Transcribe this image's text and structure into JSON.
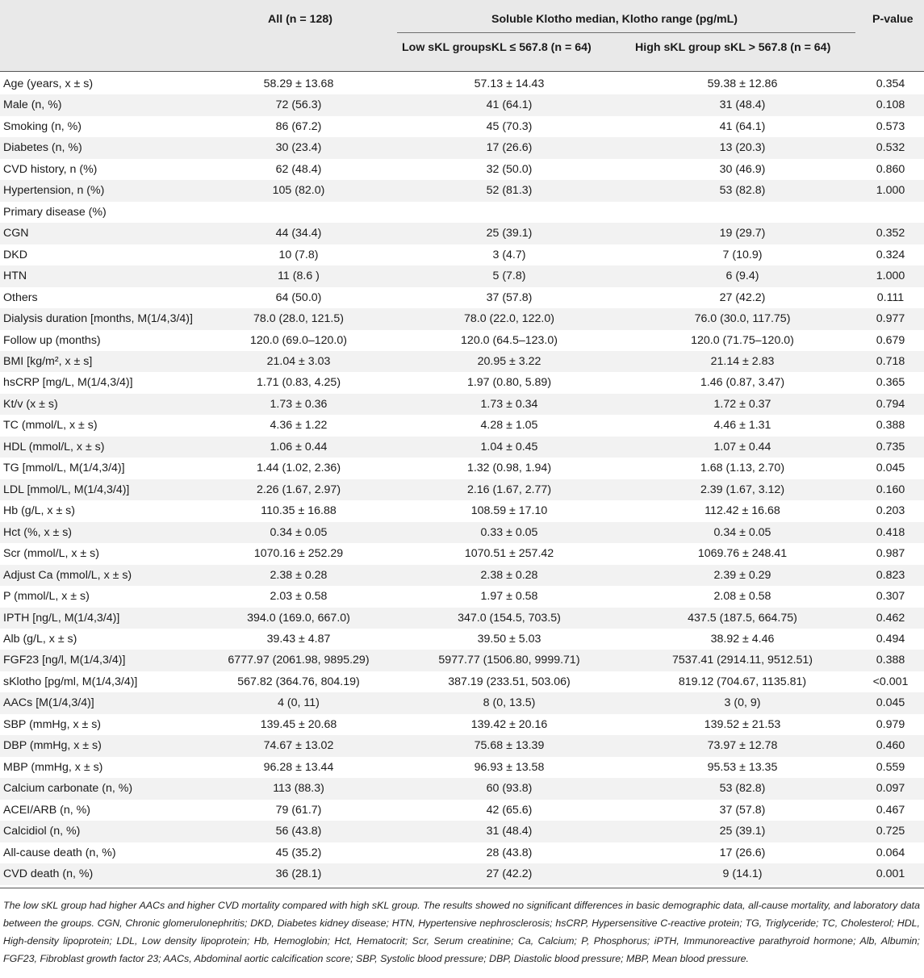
{
  "header": {
    "col_all": "All (n = 128)",
    "col_group": "Soluble Klotho median, Klotho range (pg/mL)",
    "col_p": "P-value",
    "col_low": "Low sKL groupsKL ≤ 567.8 (n = 64)",
    "col_high": "High sKL group sKL > 567.8 (n = 64)"
  },
  "rows": [
    {
      "label": "Age (years, x ± s)",
      "all": "58.29 ± 13.68",
      "low": "57.13 ± 14.43",
      "high": "59.38 ± 12.86",
      "p": "0.354"
    },
    {
      "label": "Male (n, %)",
      "all": "72 (56.3)",
      "low": "41 (64.1)",
      "high": "31 (48.4)",
      "p": "0.108"
    },
    {
      "label": "Smoking (n, %)",
      "all": "86 (67.2)",
      "low": "45 (70.3)",
      "high": "41 (64.1)",
      "p": "0.573"
    },
    {
      "label": "Diabetes (n, %)",
      "all": "30 (23.4)",
      "low": "17 (26.6)",
      "high": "13 (20.3)",
      "p": "0.532"
    },
    {
      "label": "CVD history, n (%)",
      "all": "62 (48.4)",
      "low": "32 (50.0)",
      "high": "30 (46.9)",
      "p": "0.860"
    },
    {
      "label": "Hypertension, n (%)",
      "all": "105 (82.0)",
      "low": "52 (81.3)",
      "high": "53 (82.8)",
      "p": "1.000"
    },
    {
      "label": "Primary disease (%)",
      "all": "",
      "low": "",
      "high": "",
      "p": ""
    },
    {
      "label": "CGN",
      "all": "44 (34.4)",
      "low": "25 (39.1)",
      "high": "19 (29.7)",
      "p": "0.352"
    },
    {
      "label": "DKD",
      "all": "10 (7.8)",
      "low": "3 (4.7)",
      "high": "7 (10.9)",
      "p": "0.324"
    },
    {
      "label": "HTN",
      "all": "11 (8.6 )",
      "low": "5 (7.8)",
      "high": "6 (9.4)",
      "p": "1.000"
    },
    {
      "label": "Others",
      "all": "64 (50.0)",
      "low": "37 (57.8)",
      "high": "27 (42.2)",
      "p": "0.111"
    },
    {
      "label": "Dialysis duration [months, M(1/4,3/4)]",
      "all": "78.0 (28.0, 121.5)",
      "low": "78.0 (22.0, 122.0)",
      "high": "76.0 (30.0, 117.75)",
      "p": "0.977"
    },
    {
      "label": "Follow up (months)",
      "all": "120.0 (69.0–120.0)",
      "low": "120.0 (64.5–123.0)",
      "high": "120.0 (71.75–120.0)",
      "p": "0.679"
    },
    {
      "label": "BMI [kg/m², x ± s]",
      "all": "21.04 ± 3.03",
      "low": "20.95 ± 3.22",
      "high": "21.14 ± 2.83",
      "p": "0.718"
    },
    {
      "label": "hsCRP [mg/L, M(1/4,3/4)]",
      "all": "1.71 (0.83, 4.25)",
      "low": "1.97 (0.80, 5.89)",
      "high": "1.46 (0.87, 3.47)",
      "p": "0.365"
    },
    {
      "label": "Kt/v (x ± s)",
      "all": "1.73 ± 0.36",
      "low": "1.73 ± 0.34",
      "high": "1.72 ± 0.37",
      "p": "0.794"
    },
    {
      "label": "TC (mmol/L, x ± s)",
      "all": "4.36 ± 1.22",
      "low": "4.28 ± 1.05",
      "high": "4.46 ± 1.31",
      "p": "0.388"
    },
    {
      "label": "HDL (mmol/L, x ± s)",
      "all": "1.06 ± 0.44",
      "low": "1.04 ± 0.45",
      "high": "1.07 ± 0.44",
      "p": "0.735"
    },
    {
      "label": "TG [mmol/L, M(1/4,3/4)]",
      "all": "1.44 (1.02, 2.36)",
      "low": "1.32 (0.98, 1.94)",
      "high": "1.68 (1.13, 2.70)",
      "p": "0.045"
    },
    {
      "label": "LDL [mmol/L, M(1/4,3/4)]",
      "all": "2.26 (1.67, 2.97)",
      "low": "2.16 (1.67, 2.77)",
      "high": "2.39 (1.67, 3.12)",
      "p": "0.160"
    },
    {
      "label": "Hb (g/L, x ± s)",
      "all": "110.35 ± 16.88",
      "low": "108.59 ± 17.10",
      "high": "112.42 ± 16.68",
      "p": "0.203"
    },
    {
      "label": "Hct (%, x ± s)",
      "all": "0.34 ± 0.05",
      "low": "0.33 ± 0.05",
      "high": "0.34 ± 0.05",
      "p": "0.418"
    },
    {
      "label": "Scr (mmol/L, x ± s)",
      "all": "1070.16 ± 252.29",
      "low": "1070.51 ± 257.42",
      "high": "1069.76 ± 248.41",
      "p": "0.987"
    },
    {
      "label": "Adjust Ca (mmol/L, x ± s)",
      "all": "2.38 ± 0.28",
      "low": "2.38 ± 0.28",
      "high": "2.39 ± 0.29",
      "p": "0.823"
    },
    {
      "label": "P (mmol/L, x ± s)",
      "all": "2.03 ± 0.58",
      "low": "1.97 ± 0.58",
      "high": "2.08 ± 0.58",
      "p": "0.307"
    },
    {
      "label": "IPTH [ng/L, M(1/4,3/4)]",
      "all": "394.0 (169.0, 667.0)",
      "low": "347.0 (154.5, 703.5)",
      "high": "437.5 (187.5, 664.75)",
      "p": "0.462"
    },
    {
      "label": "Alb (g/L, x ± s)",
      "all": "39.43 ± 4.87",
      "low": "39.50 ± 5.03",
      "high": "38.92 ± 4.46",
      "p": "0.494"
    },
    {
      "label": "FGF23 [ng/l, M(1/4,3/4)]",
      "all": "6777.97 (2061.98, 9895.29)",
      "low": "5977.77 (1506.80, 9999.71)",
      "high": "7537.41 (2914.11, 9512.51)",
      "p": "0.388"
    },
    {
      "label": "sKlotho [pg/ml, M(1/4,3/4)]",
      "all": "567.82 (364.76, 804.19)",
      "low": "387.19 (233.51, 503.06)",
      "high": "819.12 (704.67, 1135.81)",
      "p": "<0.001"
    },
    {
      "label": "AACs [M(1/4,3/4)]",
      "all": "4 (0, 11)",
      "low": "8 (0, 13.5)",
      "high": "3 (0, 9)",
      "p": "0.045"
    },
    {
      "label": "SBP (mmHg, x ± s)",
      "all": "139.45 ± 20.68",
      "low": "139.42 ± 20.16",
      "high": "139.52 ± 21.53",
      "p": "0.979"
    },
    {
      "label": "DBP (mmHg, x ± s)",
      "all": "74.67 ± 13.02",
      "low": "75.68 ± 13.39",
      "high": "73.97 ± 12.78",
      "p": "0.460"
    },
    {
      "label": "MBP (mmHg, x ± s)",
      "all": "96.28 ± 13.44",
      "low": "96.93 ± 13.58",
      "high": "95.53 ± 13.35",
      "p": "0.559"
    },
    {
      "label": "Calcium carbonate (n, %)",
      "all": "113 (88.3)",
      "low": "60 (93.8)",
      "high": "53 (82.8)",
      "p": "0.097"
    },
    {
      "label": "ACEI/ARB (n, %)",
      "all": "79 (61.7)",
      "low": "42 (65.6)",
      "high": "37 (57.8)",
      "p": "0.467"
    },
    {
      "label": "Calcidiol (n, %)",
      "all": "56 (43.8)",
      "low": "31 (48.4)",
      "high": "25 (39.1)",
      "p": "0.725"
    },
    {
      "label": "All-cause death (n, %)",
      "all": "45 (35.2)",
      "low": "28 (43.8)",
      "high": "17 (26.6)",
      "p": "0.064"
    },
    {
      "label": "CVD death (n, %)",
      "all": "36 (28.1)",
      "low": "27 (42.2)",
      "high": "9 (14.1)",
      "p": "0.001"
    }
  ],
  "footnote": "The low sKL group had higher AACs and higher CVD mortality compared with high sKL group. The results showed no significant differences in basic demographic data, all-cause mortality, and laboratory data between the groups. CGN, Chronic glomerulonephritis; DKD, Diabetes kidney disease; HTN, Hypertensive nephrosclerosis; hsCRP, Hypersensitive C-reactive protein; TG, Triglyceride; TC, Cholesterol; HDL, High-density lipoprotein; LDL, Low density lipoprotein; Hb, Hemoglobin; Hct, Hematocrit; Scr, Serum creatinine; Ca, Calcium; P, Phosphorus; iPTH, Immunoreactive parathyroid hormone; Alb, Albumin; FGF23, Fibroblast growth factor 23; AACs, Abdominal aortic calcification score; SBP, Systolic blood pressure; DBP, Diastolic blood pressure; MBP, Mean blood pressure."
}
